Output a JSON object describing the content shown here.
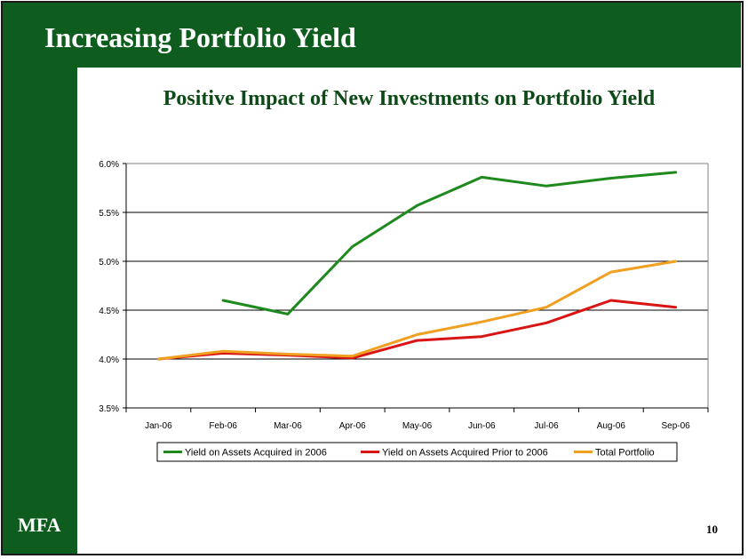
{
  "slide": {
    "title": "Increasing Portfolio Yield",
    "logo": "MFA",
    "page_number": "10",
    "brand_color": "#0e5c1e"
  },
  "chart_data": {
    "type": "line",
    "title": "Positive Impact of New Investments on Portfolio Yield",
    "xlabel": "",
    "ylabel": "",
    "categories": [
      "Jan-06",
      "Feb-06",
      "Mar-06",
      "Apr-06",
      "May-06",
      "Jun-06",
      "Jul-06",
      "Aug-06",
      "Sep-06"
    ],
    "y_ticks": [
      "6.0%",
      "5.5%",
      "5.0%",
      "4.5%",
      "4.0%",
      "3.5%"
    ],
    "ylim": [
      3.5,
      6.0
    ],
    "grid": true,
    "legend_position": "bottom",
    "series": [
      {
        "name": "Yield on Assets Acquired in 2006",
        "color": "#1e8a1e",
        "values": [
          null,
          4.6,
          4.46,
          5.15,
          5.57,
          5.86,
          5.77,
          5.85,
          5.91
        ]
      },
      {
        "name": "Yield on Assets Acquired Prior to 2006",
        "color": "#d91414",
        "values": [
          4.0,
          4.06,
          4.04,
          4.01,
          4.19,
          4.23,
          4.37,
          4.6,
          4.53
        ]
      },
      {
        "name": "Total Portfolio",
        "color": "#f0a020",
        "values": [
          4.0,
          4.08,
          4.05,
          4.03,
          4.25,
          4.38,
          4.53,
          4.89,
          5.0
        ]
      }
    ]
  }
}
